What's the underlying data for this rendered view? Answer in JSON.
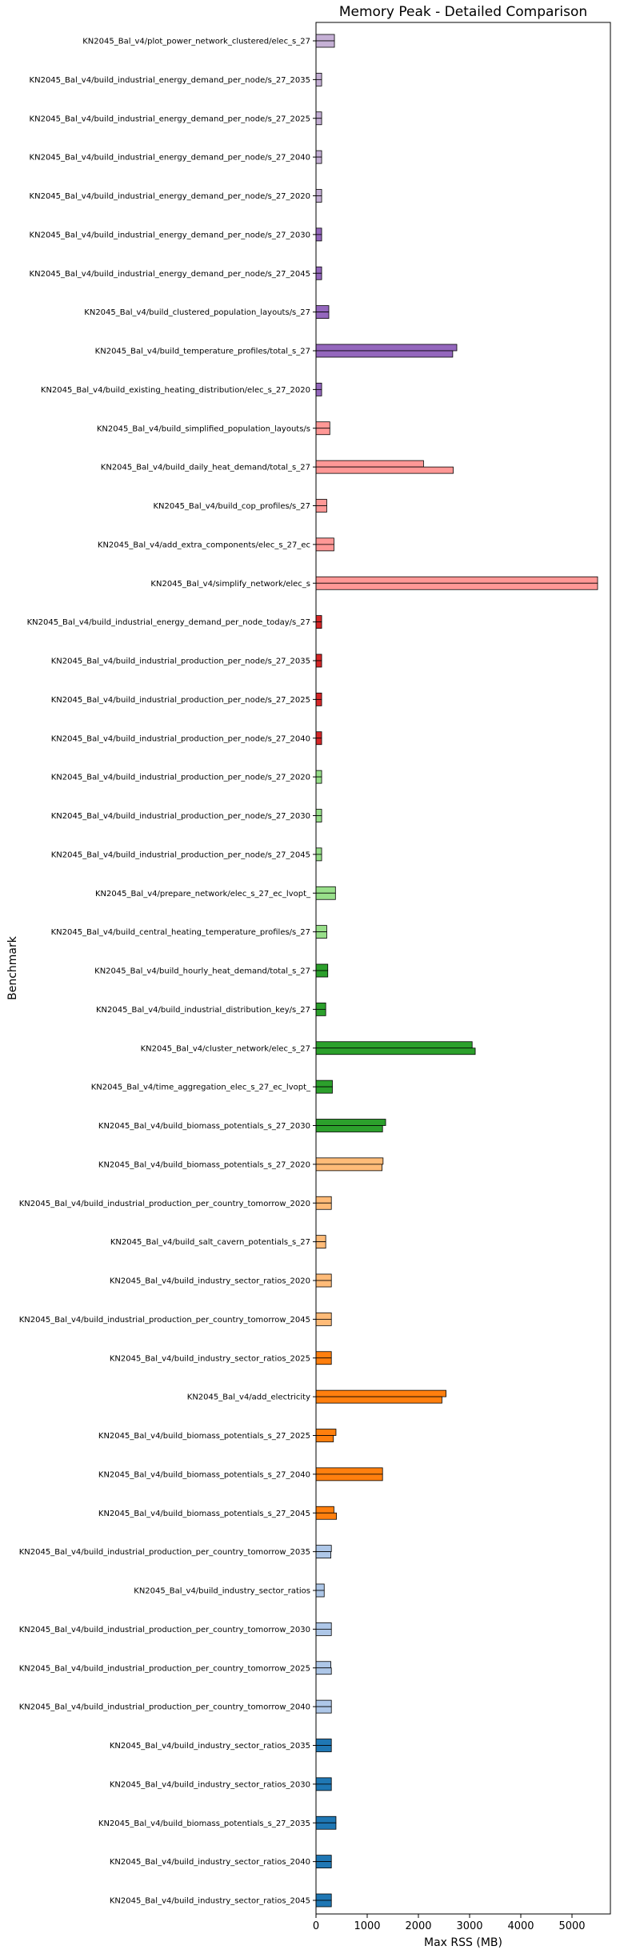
{
  "chart_data": {
    "type": "bar",
    "orientation": "horizontal",
    "title": "Memory Peak - Detailed Comparison",
    "xlabel": "Max RSS (MB)",
    "ylabel": "Benchmark",
    "xlim": [
      0,
      5750
    ],
    "xticks": [
      0,
      1000,
      2000,
      3000,
      4000,
      5000
    ],
    "grid": false,
    "legend": "none",
    "categories": [
      {
        "label": "KN2045_Bal_v4/plot_power_network_clustered/elec_s_27",
        "values": [
          360,
          360
        ],
        "color": "#c5b0d5"
      },
      {
        "label": "KN2045_Bal_v4/build_industrial_energy_demand_per_node/s_27_2035",
        "values": [
          110,
          110
        ],
        "color": "#c5b0d5"
      },
      {
        "label": "KN2045_Bal_v4/build_industrial_energy_demand_per_node/s_27_2025",
        "values": [
          110,
          110
        ],
        "color": "#c5b0d5"
      },
      {
        "label": "KN2045_Bal_v4/build_industrial_energy_demand_per_node/s_27_2040",
        "values": [
          110,
          110
        ],
        "color": "#c5b0d5"
      },
      {
        "label": "KN2045_Bal_v4/build_industrial_energy_demand_per_node/s_27_2020",
        "values": [
          110,
          110
        ],
        "color": "#c5b0d5"
      },
      {
        "label": "KN2045_Bal_v4/build_industrial_energy_demand_per_node/s_27_2030",
        "values": [
          110,
          110
        ],
        "color": "#9467bd"
      },
      {
        "label": "KN2045_Bal_v4/build_industrial_energy_demand_per_node/s_27_2045",
        "values": [
          110,
          110
        ],
        "color": "#9467bd"
      },
      {
        "label": "KN2045_Bal_v4/build_clustered_population_layouts/s_27",
        "values": [
          250,
          250
        ],
        "color": "#9467bd"
      },
      {
        "label": "KN2045_Bal_v4/build_temperature_profiles/total_s_27",
        "values": [
          2750,
          2670
        ],
        "color": "#9467bd"
      },
      {
        "label": "KN2045_Bal_v4/build_existing_heating_distribution/elec_s_27_2020",
        "values": [
          110,
          110
        ],
        "color": "#9467bd"
      },
      {
        "label": "KN2045_Bal_v4/build_simplified_population_layouts/s",
        "values": [
          270,
          270
        ],
        "color": "#ff9896"
      },
      {
        "label": "KN2045_Bal_v4/build_daily_heat_demand/total_s_27",
        "values": [
          2100,
          2680
        ],
        "color": "#ff9896"
      },
      {
        "label": "KN2045_Bal_v4/build_cop_profiles/s_27",
        "values": [
          210,
          210
        ],
        "color": "#ff9896"
      },
      {
        "label": "KN2045_Bal_v4/add_extra_components/elec_s_27_ec",
        "values": [
          350,
          350
        ],
        "color": "#ff9896"
      },
      {
        "label": "KN2045_Bal_v4/simplify_network/elec_s",
        "values": [
          5500,
          5500
        ],
        "color": "#ff9896"
      },
      {
        "label": "KN2045_Bal_v4/build_industrial_energy_demand_per_node_today/s_27",
        "values": [
          110,
          110
        ],
        "color": "#d62728"
      },
      {
        "label": "KN2045_Bal_v4/build_industrial_production_per_node/s_27_2035",
        "values": [
          110,
          110
        ],
        "color": "#d62728"
      },
      {
        "label": "KN2045_Bal_v4/build_industrial_production_per_node/s_27_2025",
        "values": [
          110,
          110
        ],
        "color": "#d62728"
      },
      {
        "label": "KN2045_Bal_v4/build_industrial_production_per_node/s_27_2040",
        "values": [
          110,
          110
        ],
        "color": "#d62728"
      },
      {
        "label": "KN2045_Bal_v4/build_industrial_production_per_node/s_27_2020",
        "values": [
          110,
          110
        ],
        "color": "#98df8a"
      },
      {
        "label": "KN2045_Bal_v4/build_industrial_production_per_node/s_27_2030",
        "values": [
          110,
          110
        ],
        "color": "#98df8a"
      },
      {
        "label": "KN2045_Bal_v4/build_industrial_production_per_node/s_27_2045",
        "values": [
          110,
          110
        ],
        "color": "#98df8a"
      },
      {
        "label": "KN2045_Bal_v4/prepare_network/elec_s_27_ec_lvopt_",
        "values": [
          380,
          380
        ],
        "color": "#98df8a"
      },
      {
        "label": "KN2045_Bal_v4/build_central_heating_temperature_profiles/s_27",
        "values": [
          210,
          210
        ],
        "color": "#98df8a"
      },
      {
        "label": "KN2045_Bal_v4/build_hourly_heat_demand/total_s_27",
        "values": [
          230,
          230
        ],
        "color": "#2ca02c"
      },
      {
        "label": "KN2045_Bal_v4/build_industrial_distribution_key/s_27",
        "values": [
          190,
          190
        ],
        "color": "#2ca02c"
      },
      {
        "label": "KN2045_Bal_v4/cluster_network/elec_s_27",
        "values": [
          3050,
          3110
        ],
        "color": "#2ca02c"
      },
      {
        "label": "KN2045_Bal_v4/time_aggregation_elec_s_27_ec_lvopt_",
        "values": [
          320,
          320
        ],
        "color": "#2ca02c"
      },
      {
        "label": "KN2045_Bal_v4/build_biomass_potentials_s_27_2030",
        "values": [
          1360,
          1300
        ],
        "color": "#2ca02c"
      },
      {
        "label": "KN2045_Bal_v4/build_biomass_potentials_s_27_2020",
        "values": [
          1310,
          1290
        ],
        "color": "#ffbb78"
      },
      {
        "label": "KN2045_Bal_v4/build_industrial_production_per_country_tomorrow_2020",
        "values": [
          300,
          300
        ],
        "color": "#ffbb78"
      },
      {
        "label": "KN2045_Bal_v4/build_salt_cavern_potentials_s_27",
        "values": [
          190,
          190
        ],
        "color": "#ffbb78"
      },
      {
        "label": "KN2045_Bal_v4/build_industry_sector_ratios_2020",
        "values": [
          300,
          300
        ],
        "color": "#ffbb78"
      },
      {
        "label": "KN2045_Bal_v4/build_industrial_production_per_country_tomorrow_2045",
        "values": [
          300,
          300
        ],
        "color": "#ffbb78"
      },
      {
        "label": "KN2045_Bal_v4/build_industry_sector_ratios_2025",
        "values": [
          300,
          300
        ],
        "color": "#ff7f0e"
      },
      {
        "label": "KN2045_Bal_v4/add_electricity",
        "values": [
          2540,
          2460
        ],
        "color": "#ff7f0e"
      },
      {
        "label": "KN2045_Bal_v4/build_biomass_potentials_s_27_2025",
        "values": [
          390,
          340
        ],
        "color": "#ff7f0e"
      },
      {
        "label": "KN2045_Bal_v4/build_biomass_potentials_s_27_2040",
        "values": [
          1300,
          1300
        ],
        "color": "#ff7f0e"
      },
      {
        "label": "KN2045_Bal_v4/build_biomass_potentials_s_27_2045",
        "values": [
          350,
          400
        ],
        "color": "#ff7f0e"
      },
      {
        "label": "KN2045_Bal_v4/build_industrial_production_per_country_tomorrow_2035",
        "values": [
          300,
          290
        ],
        "color": "#aec7e8"
      },
      {
        "label": "KN2045_Bal_v4/build_industry_sector_ratios",
        "values": [
          160,
          160
        ],
        "color": "#aec7e8"
      },
      {
        "label": "KN2045_Bal_v4/build_industrial_production_per_country_tomorrow_2030",
        "values": [
          300,
          300
        ],
        "color": "#aec7e8"
      },
      {
        "label": "KN2045_Bal_v4/build_industrial_production_per_country_tomorrow_2025",
        "values": [
          290,
          300
        ],
        "color": "#aec7e8"
      },
      {
        "label": "KN2045_Bal_v4/build_industrial_production_per_country_tomorrow_2040",
        "values": [
          300,
          300
        ],
        "color": "#aec7e8"
      },
      {
        "label": "KN2045_Bal_v4/build_industry_sector_ratios_2035",
        "values": [
          300,
          300
        ],
        "color": "#1f77b4"
      },
      {
        "label": "KN2045_Bal_v4/build_industry_sector_ratios_2030",
        "values": [
          300,
          300
        ],
        "color": "#1f77b4"
      },
      {
        "label": "KN2045_Bal_v4/build_biomass_potentials_s_27_2035",
        "values": [
          390,
          390
        ],
        "color": "#1f77b4"
      },
      {
        "label": "KN2045_Bal_v4/build_industry_sector_ratios_2040",
        "values": [
          300,
          300
        ],
        "color": "#1f77b4"
      },
      {
        "label": "KN2045_Bal_v4/build_industry_sector_ratios_2045",
        "values": [
          300,
          300
        ],
        "color": "#1f77b4"
      }
    ]
  }
}
